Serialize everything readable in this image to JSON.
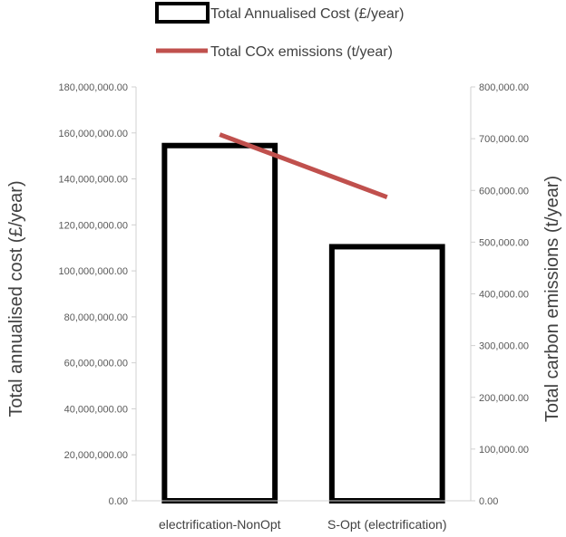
{
  "chart_data": {
    "type": "bar",
    "categories": [
      "electrification-NonOpt",
      "S-Opt (electrification)"
    ],
    "series": [
      {
        "name": "Total Annualised Cost (£/year)",
        "type": "bar",
        "axis": "left",
        "values": [
          154500000,
          110500000
        ],
        "color": "#000000"
      },
      {
        "name": "Total COx emissions (t/year)",
        "type": "line",
        "axis": "right",
        "values": [
          708000,
          587000
        ],
        "color": "#c0504d"
      }
    ],
    "ylabel": "Total annualised cost (£/year)",
    "y2label": "Total carbon emissions (t/year)",
    "ylim": [
      0,
      180000000
    ],
    "y2lim": [
      0,
      800000
    ],
    "yticks": [
      "0.00",
      "20,000,000.00",
      "40,000,000.00",
      "60,000,000.00",
      "80,000,000.00",
      "100,000,000.00",
      "120,000,000.00",
      "140,000,000.00",
      "160,000,000.00",
      "180,000,000.00"
    ],
    "y2ticks": [
      "0.00",
      "100,000.00",
      "200,000.00",
      "300,000.00",
      "400,000.00",
      "500,000.00",
      "600,000.00",
      "700,000.00",
      "800,000.00"
    ],
    "legend_position": "top",
    "grid": false
  }
}
